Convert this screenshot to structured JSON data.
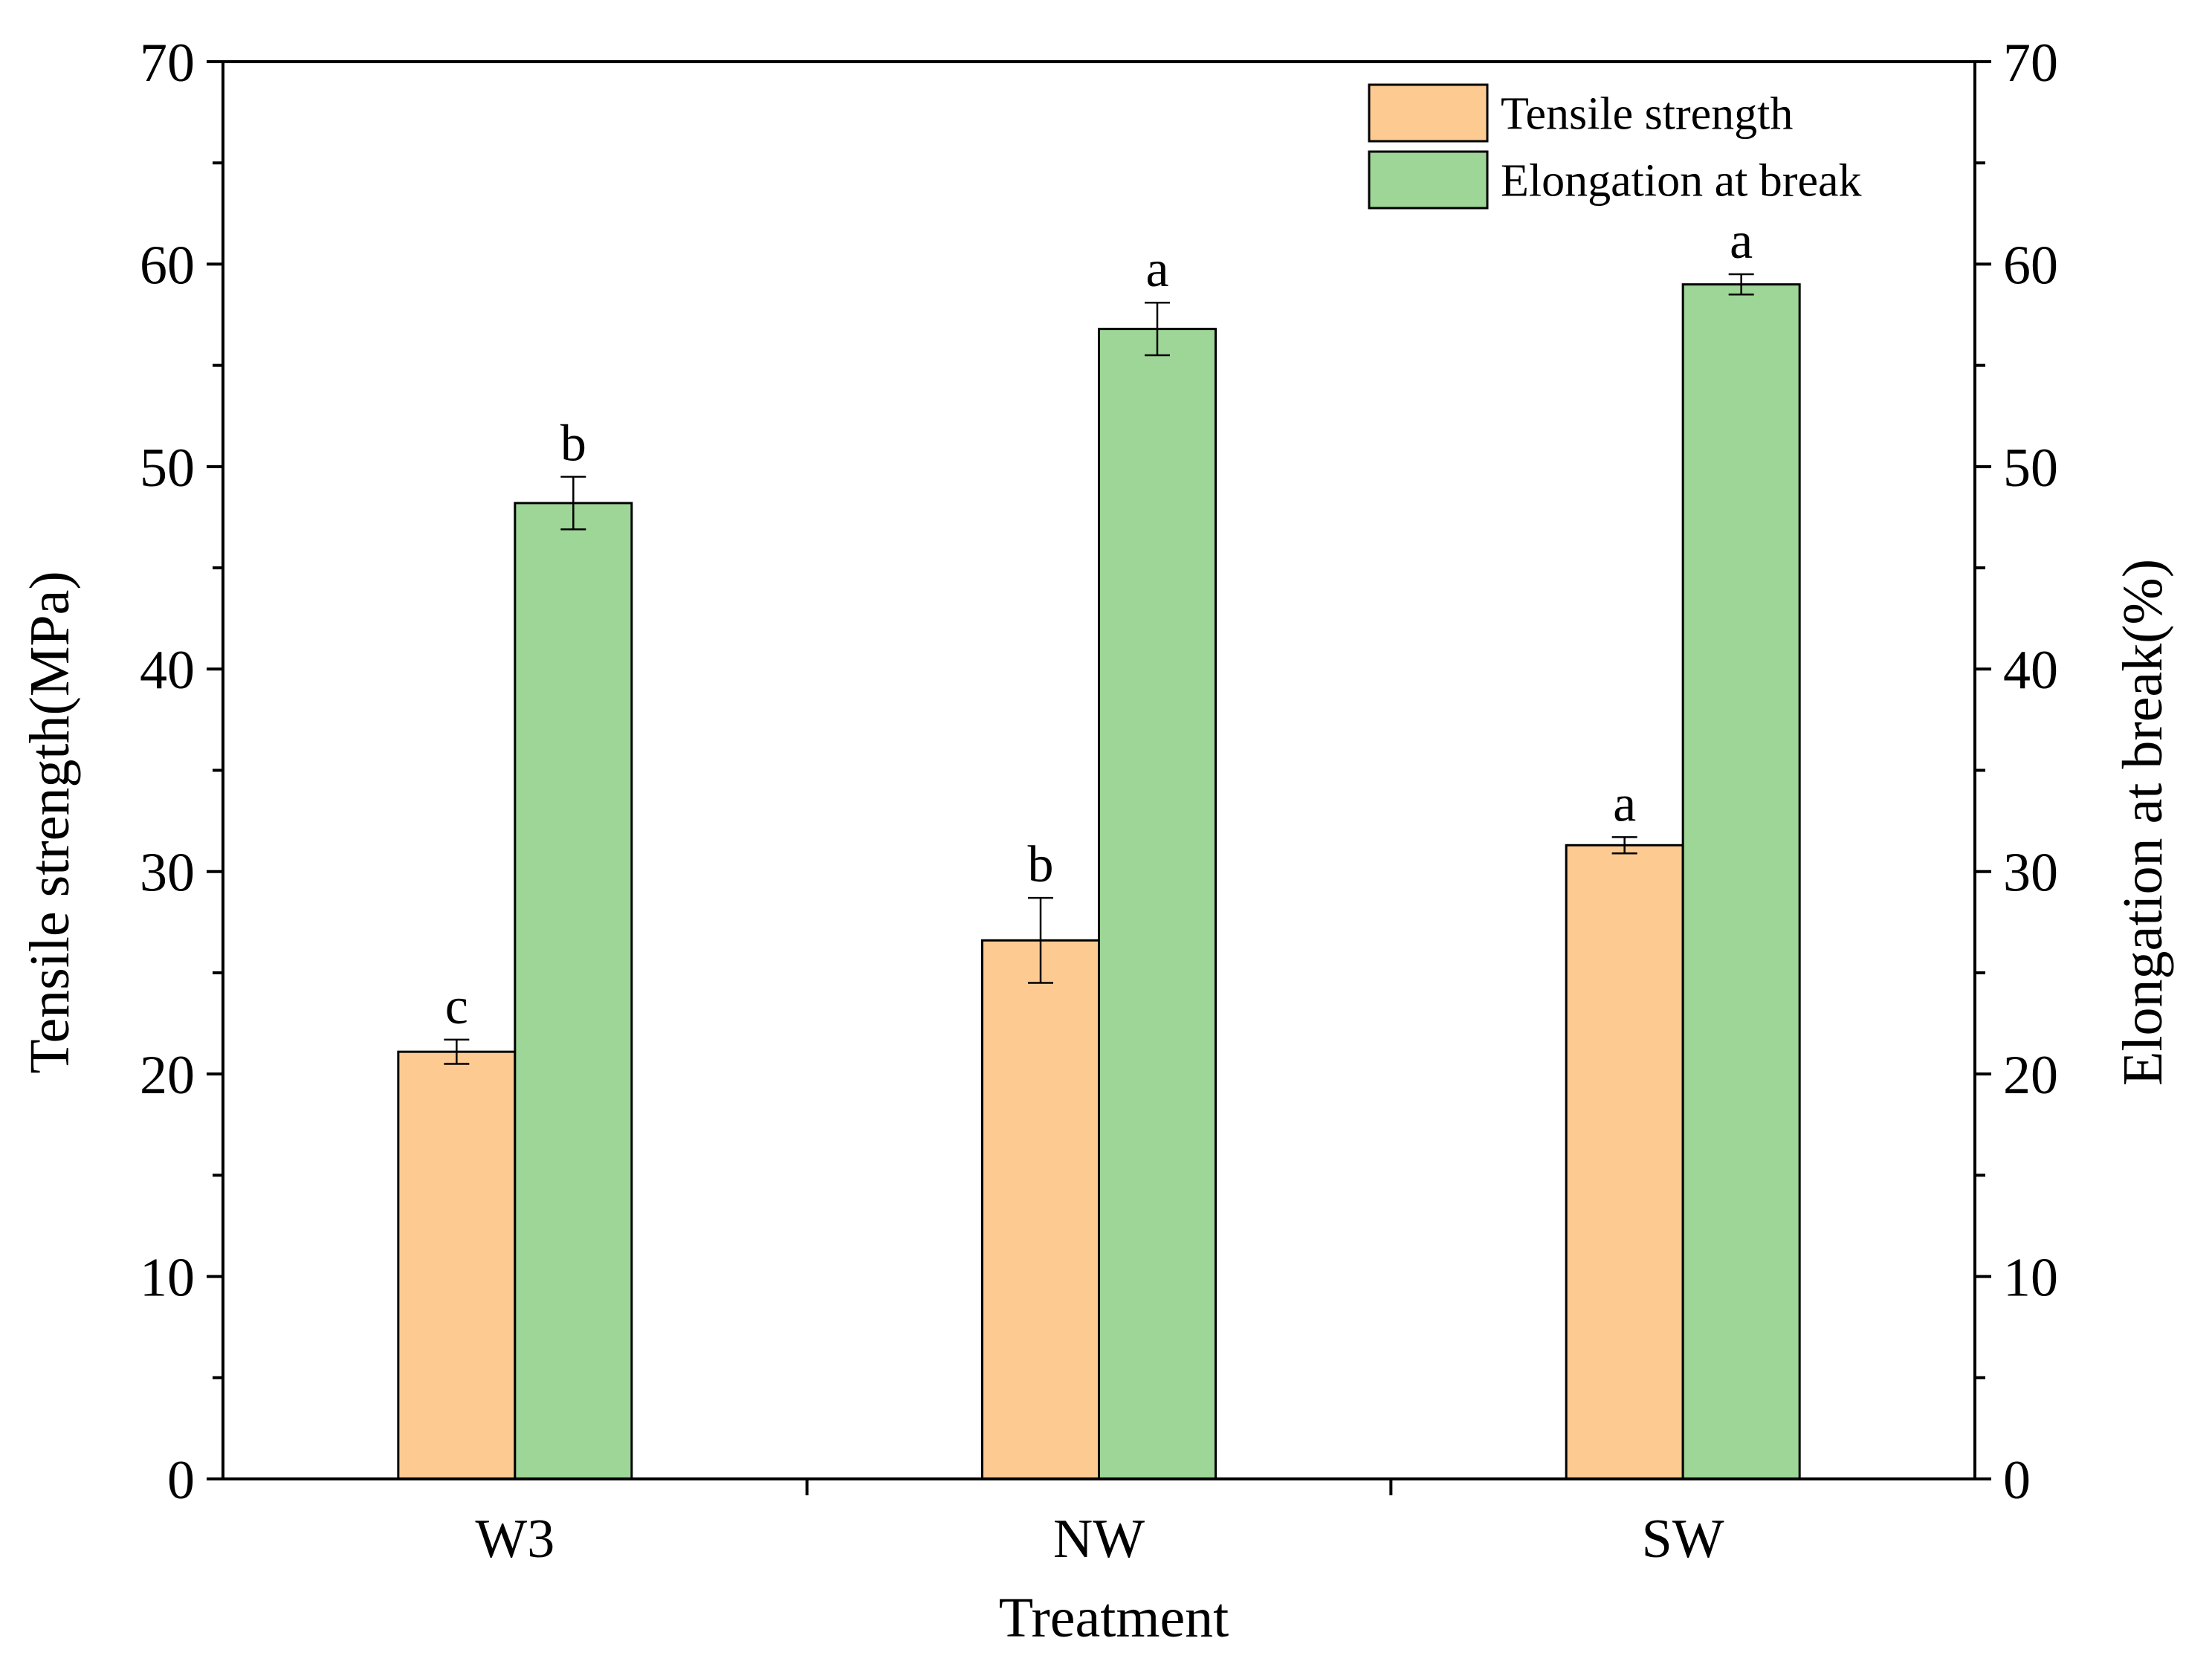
{
  "chart_data": {
    "type": "bar",
    "categories": [
      "W3",
      "NW",
      "SW"
    ],
    "xlabel": "Treatment",
    "ylabel_left": "Tensile strength(MPa)",
    "ylabel_right": "Elongation at break(%)",
    "ylim_left": [
      0,
      70
    ],
    "ylim_right": [
      0,
      70
    ],
    "y_ticks": [
      "0",
      "10",
      "20",
      "30",
      "40",
      "50",
      "60",
      "70"
    ],
    "series": [
      {
        "name": "Tensile strength",
        "axis": "left",
        "color": "#fdcb91",
        "values": [
          21.1,
          26.6,
          31.3
        ],
        "errors": [
          0.6,
          2.1,
          0.4
        ],
        "letters": [
          "c",
          "b",
          "a"
        ]
      },
      {
        "name": "Elongation at break",
        "axis": "right",
        "color": "#9dd696",
        "values": [
          48.2,
          56.8,
          59.0
        ],
        "errors": [
          1.3,
          1.3,
          0.5
        ],
        "letters": [
          "b",
          "a",
          "a"
        ]
      }
    ],
    "legend_position": "top-right",
    "grid": false
  }
}
